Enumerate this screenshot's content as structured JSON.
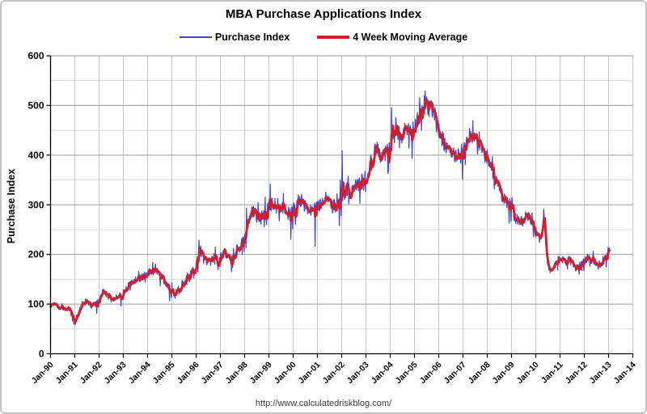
{
  "chart": {
    "title": "MBA Purchase Applications Index",
    "footer_url": "http://www.calculatedriskblog.com/"
  },
  "colors": {
    "purchase_index": "#4343d4",
    "moving_average": "#d1202a",
    "grid_major": "#9a9a9a",
    "grid_minor": "#dcdcdc",
    "grid_vertical": "#c6c6c6",
    "axis": "#000000",
    "frame_border": "#c3c3c3",
    "footer_text": "#3d3d3d"
  },
  "chart_data": {
    "type": "line",
    "title": "MBA Purchase Applications Index",
    "xlabel": "",
    "ylabel": "Purchase Index",
    "ylim": [
      0,
      600
    ],
    "y_major_step": 100,
    "y_minor_step": 50,
    "xlim_years": [
      1990,
      2014
    ],
    "x_tick_labels": [
      "Jan-90",
      "Jan-91",
      "Jan-92",
      "Jan-93",
      "Jan-94",
      "Jan-95",
      "Jan-96",
      "Jan-97",
      "Jan-98",
      "Jan-99",
      "Jan-00",
      "Jan-01",
      "Jan-02",
      "Jan-03",
      "Jan-04",
      "Jan-05",
      "Jan-06",
      "Jan-07",
      "Jan-08",
      "Jan-09",
      "Jan-10",
      "Jan-11",
      "Jan-12",
      "Jan-13",
      "Jan-14"
    ],
    "grid": true,
    "legend_position": "top-center",
    "data_start_year": 1990.0,
    "data_end_year": 2013.05,
    "points_per_year": 52,
    "series": [
      {
        "name": "Purchase Index",
        "color": "#4343d4",
        "line_width": 1.2,
        "derivation": "weekly index level interpolated from anchors with weekly volatility"
      },
      {
        "name": "4 Week Moving Average",
        "color": "#d1202a",
        "line_width": 2.8,
        "derivation": "4-week trailing moving average of Purchase Index"
      }
    ],
    "anchors": [
      [
        1990.0,
        97
      ],
      [
        1990.15,
        102
      ],
      [
        1990.35,
        96
      ],
      [
        1990.55,
        93
      ],
      [
        1990.75,
        90
      ],
      [
        1990.95,
        75
      ],
      [
        1991.05,
        68
      ],
      [
        1991.15,
        80
      ],
      [
        1991.3,
        100
      ],
      [
        1991.45,
        106
      ],
      [
        1991.6,
        100
      ],
      [
        1991.75,
        97
      ],
      [
        1991.9,
        100
      ],
      [
        1992.05,
        112
      ],
      [
        1992.2,
        125
      ],
      [
        1992.35,
        118
      ],
      [
        1992.5,
        113
      ],
      [
        1992.65,
        112
      ],
      [
        1992.8,
        117
      ],
      [
        1993.0,
        123
      ],
      [
        1993.15,
        133
      ],
      [
        1993.3,
        142
      ],
      [
        1993.5,
        148
      ],
      [
        1993.7,
        152
      ],
      [
        1993.9,
        158
      ],
      [
        1994.05,
        165
      ],
      [
        1994.2,
        170
      ],
      [
        1994.35,
        165
      ],
      [
        1994.5,
        158
      ],
      [
        1994.65,
        150
      ],
      [
        1994.8,
        140
      ],
      [
        1995.0,
        125
      ],
      [
        1995.1,
        114
      ],
      [
        1995.25,
        125
      ],
      [
        1995.4,
        138
      ],
      [
        1995.55,
        148
      ],
      [
        1995.7,
        155
      ],
      [
        1995.85,
        162
      ],
      [
        1996.0,
        178
      ],
      [
        1996.1,
        200
      ],
      [
        1996.2,
        208
      ],
      [
        1996.3,
        190
      ],
      [
        1996.45,
        183
      ],
      [
        1996.6,
        190
      ],
      [
        1996.75,
        193
      ],
      [
        1996.9,
        186
      ],
      [
        1997.05,
        192
      ],
      [
        1997.2,
        200
      ],
      [
        1997.35,
        194
      ],
      [
        1997.5,
        198
      ],
      [
        1997.65,
        205
      ],
      [
        1997.8,
        212
      ],
      [
        1997.95,
        225
      ],
      [
        1998.1,
        255
      ],
      [
        1998.25,
        285
      ],
      [
        1998.4,
        283
      ],
      [
        1998.55,
        276
      ],
      [
        1998.7,
        272
      ],
      [
        1998.85,
        282
      ],
      [
        1999.0,
        295
      ],
      [
        1999.15,
        303
      ],
      [
        1999.3,
        308
      ],
      [
        1999.45,
        305
      ],
      [
        1999.6,
        292
      ],
      [
        1999.75,
        285
      ],
      [
        1999.9,
        280
      ],
      [
        2000.05,
        288
      ],
      [
        2000.2,
        305
      ],
      [
        2000.35,
        308
      ],
      [
        2000.5,
        300
      ],
      [
        2000.65,
        296
      ],
      [
        2000.8,
        292
      ],
      [
        2000.95,
        290
      ],
      [
        2001.1,
        305
      ],
      [
        2001.25,
        312
      ],
      [
        2001.4,
        308
      ],
      [
        2001.55,
        303
      ],
      [
        2001.7,
        295
      ],
      [
        2001.8,
        288
      ],
      [
        2001.95,
        308
      ],
      [
        2002.1,
        322
      ],
      [
        2002.25,
        335
      ],
      [
        2002.4,
        328
      ],
      [
        2002.55,
        335
      ],
      [
        2002.7,
        342
      ],
      [
        2002.85,
        350
      ],
      [
        2003.0,
        358
      ],
      [
        2003.15,
        375
      ],
      [
        2003.3,
        400
      ],
      [
        2003.4,
        425
      ],
      [
        2003.5,
        408
      ],
      [
        2003.65,
        398
      ],
      [
        2003.8,
        408
      ],
      [
        2003.95,
        420
      ],
      [
        2004.1,
        445
      ],
      [
        2004.25,
        458
      ],
      [
        2004.4,
        442
      ],
      [
        2004.55,
        445
      ],
      [
        2004.7,
        450
      ],
      [
        2004.85,
        452
      ],
      [
        2005.0,
        458
      ],
      [
        2005.15,
        472
      ],
      [
        2005.3,
        488
      ],
      [
        2005.45,
        498
      ],
      [
        2005.55,
        500
      ],
      [
        2005.7,
        492
      ],
      [
        2005.85,
        478
      ],
      [
        2006.0,
        455
      ],
      [
        2006.15,
        430
      ],
      [
        2006.3,
        418
      ],
      [
        2006.45,
        408
      ],
      [
        2006.6,
        398
      ],
      [
        2006.75,
        402
      ],
      [
        2006.9,
        408
      ],
      [
        2007.05,
        420
      ],
      [
        2007.2,
        435
      ],
      [
        2007.35,
        442
      ],
      [
        2007.5,
        436
      ],
      [
        2007.65,
        425
      ],
      [
        2007.8,
        412
      ],
      [
        2007.95,
        398
      ],
      [
        2008.1,
        382
      ],
      [
        2008.25,
        362
      ],
      [
        2008.4,
        345
      ],
      [
        2008.55,
        325
      ],
      [
        2008.7,
        308
      ],
      [
        2008.85,
        305
      ],
      [
        2009.0,
        298
      ],
      [
        2009.15,
        275
      ],
      [
        2009.3,
        265
      ],
      [
        2009.45,
        268
      ],
      [
        2009.6,
        278
      ],
      [
        2009.75,
        275
      ],
      [
        2009.9,
        262
      ],
      [
        2010.05,
        240
      ],
      [
        2010.2,
        228
      ],
      [
        2010.3,
        262
      ],
      [
        2010.36,
        272
      ],
      [
        2010.42,
        215
      ],
      [
        2010.5,
        172
      ],
      [
        2010.6,
        168
      ],
      [
        2010.75,
        176
      ],
      [
        2010.9,
        188
      ],
      [
        2011.05,
        192
      ],
      [
        2011.2,
        186
      ],
      [
        2011.35,
        190
      ],
      [
        2011.5,
        183
      ],
      [
        2011.65,
        170
      ],
      [
        2011.8,
        175
      ],
      [
        2011.95,
        183
      ],
      [
        2012.1,
        192
      ],
      [
        2012.25,
        190
      ],
      [
        2012.4,
        185
      ],
      [
        2012.55,
        178
      ],
      [
        2012.7,
        182
      ],
      [
        2012.85,
        192
      ],
      [
        2012.95,
        200
      ],
      [
        2013.03,
        208
      ]
    ],
    "noise_amplitude_anchors": [
      [
        1990,
        6
      ],
      [
        1993,
        8
      ],
      [
        1995,
        9
      ],
      [
        1996,
        12
      ],
      [
        1998,
        15
      ],
      [
        2000,
        16
      ],
      [
        2002,
        18
      ],
      [
        2004,
        20
      ],
      [
        2005,
        20
      ],
      [
        2007,
        18
      ],
      [
        2009,
        14
      ],
      [
        2010.5,
        9
      ],
      [
        2013,
        8
      ]
    ],
    "spikes": [
      [
        1991.02,
        -12
      ],
      [
        1996.12,
        28
      ],
      [
        1998.07,
        45
      ],
      [
        1999.05,
        45
      ],
      [
        2000.9,
        -75
      ],
      [
        2002.02,
        95
      ],
      [
        2004.05,
        60
      ],
      [
        2005.45,
        32
      ],
      [
        2007.4,
        30
      ],
      [
        2009.02,
        20
      ],
      [
        2010.33,
        25
      ],
      [
        2012.98,
        10
      ]
    ],
    "seasonal_dips": [
      {
        "frac_window": [
          0.885,
          0.905
        ],
        "amp_mult": 2.2
      },
      {
        "frac_window": [
          0.975,
          0.995
        ],
        "amp_mult": 1.4
      }
    ],
    "noise_seed": 1337
  }
}
